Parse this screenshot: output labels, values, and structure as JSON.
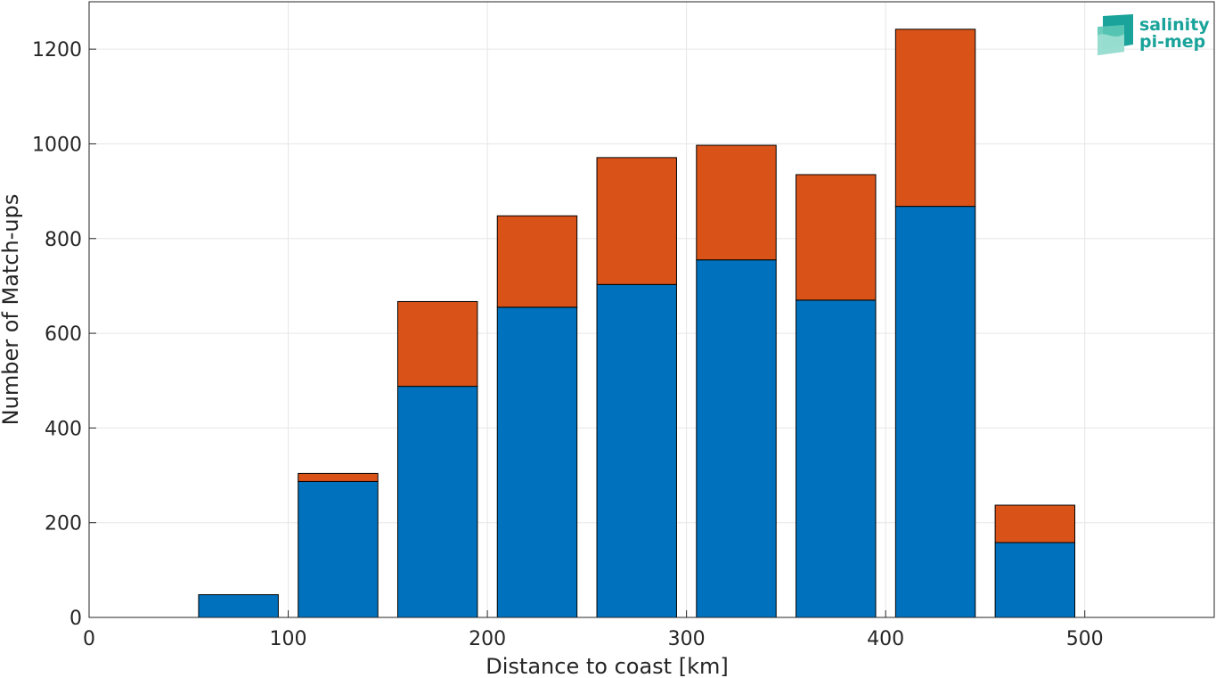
{
  "chart_data": {
    "type": "bar",
    "stacked": true,
    "x_centers": [
      25,
      75,
      125,
      175,
      225,
      275,
      325,
      375,
      425,
      475,
      525
    ],
    "series": [
      {
        "color": "#0072BD",
        "values": [
          0,
          48,
          287,
          488,
          655,
          703,
          755,
          670,
          868,
          158,
          0
        ]
      },
      {
        "color": "#D95319",
        "values": [
          0,
          0,
          17,
          179,
          193,
          268,
          242,
          265,
          374,
          79,
          0
        ]
      }
    ],
    "xlabel": "Distance to coast [km]",
    "ylabel": "Number of Match-ups",
    "xlim": [
      0,
      565
    ],
    "ylim": [
      0,
      1300
    ],
    "xticks": [
      0,
      100,
      200,
      300,
      400,
      500
    ],
    "yticks": [
      0,
      200,
      400,
      600,
      800,
      1000,
      1200
    ],
    "grid": true
  },
  "logo": {
    "line1": "salinity",
    "line2": "pi-mep",
    "color": "#1aa39a"
  }
}
